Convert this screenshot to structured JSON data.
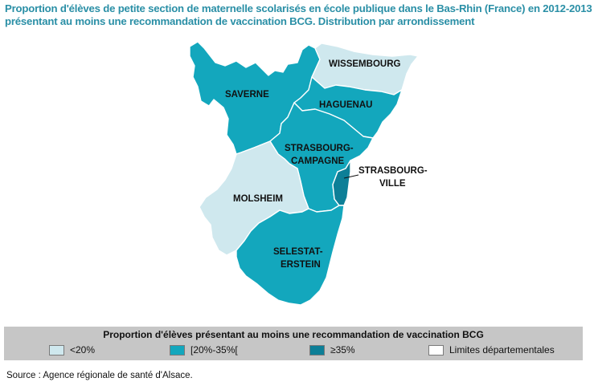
{
  "title": {
    "line1": "Proportion d'élèves de petite section de maternelle scolarisés en école publique dans le Bas-Rhin (France) en 2012-2013",
    "line2": "présentant au moins une recommandation de vaccination BCG. Distribution par arrondissement"
  },
  "colors": {
    "light": "#cfe8ee",
    "medium": "#13a7bd",
    "dark": "#0d7f97",
    "boundary": "#ffffff",
    "title": "#2a8fa6",
    "legend_bg": "#c6c6c6"
  },
  "regions": {
    "wissembourg": {
      "label": "WISSEMBOURG",
      "category": "<20%"
    },
    "saverne": {
      "label": "SAVERNE",
      "category": "[20%-35%["
    },
    "haguenau": {
      "label": "HAGUENAU",
      "category": "[20%-35%["
    },
    "strasbourg_campagne": {
      "label_line1": "STRASBOURG-",
      "label_line2": "CAMPAGNE",
      "category": "[20%-35%["
    },
    "strasbourg_ville": {
      "label_line1": "STRASBOURG-",
      "label_line2": "VILLE",
      "category": "≥35%"
    },
    "molsheim": {
      "label": "MOLSHEIM",
      "category": "<20%"
    },
    "selestat_erstein": {
      "label_line1": "SELESTAT-",
      "label_line2": "ERSTEIN",
      "category": "[20%-35%["
    }
  },
  "legend": {
    "title": "Proportion d'élèves présentant au moins une recommandation de vaccination BCG",
    "items": [
      {
        "label": "<20%",
        "color": "#cfe8ee"
      },
      {
        "label": "[20%-35%[",
        "color": "#13a7bd"
      },
      {
        "label": "≥35%",
        "color": "#0d7f97"
      },
      {
        "label": "Limites départementales",
        "color": "#ffffff"
      }
    ]
  },
  "source": "Source : Agence régionale de santé d'Alsace."
}
